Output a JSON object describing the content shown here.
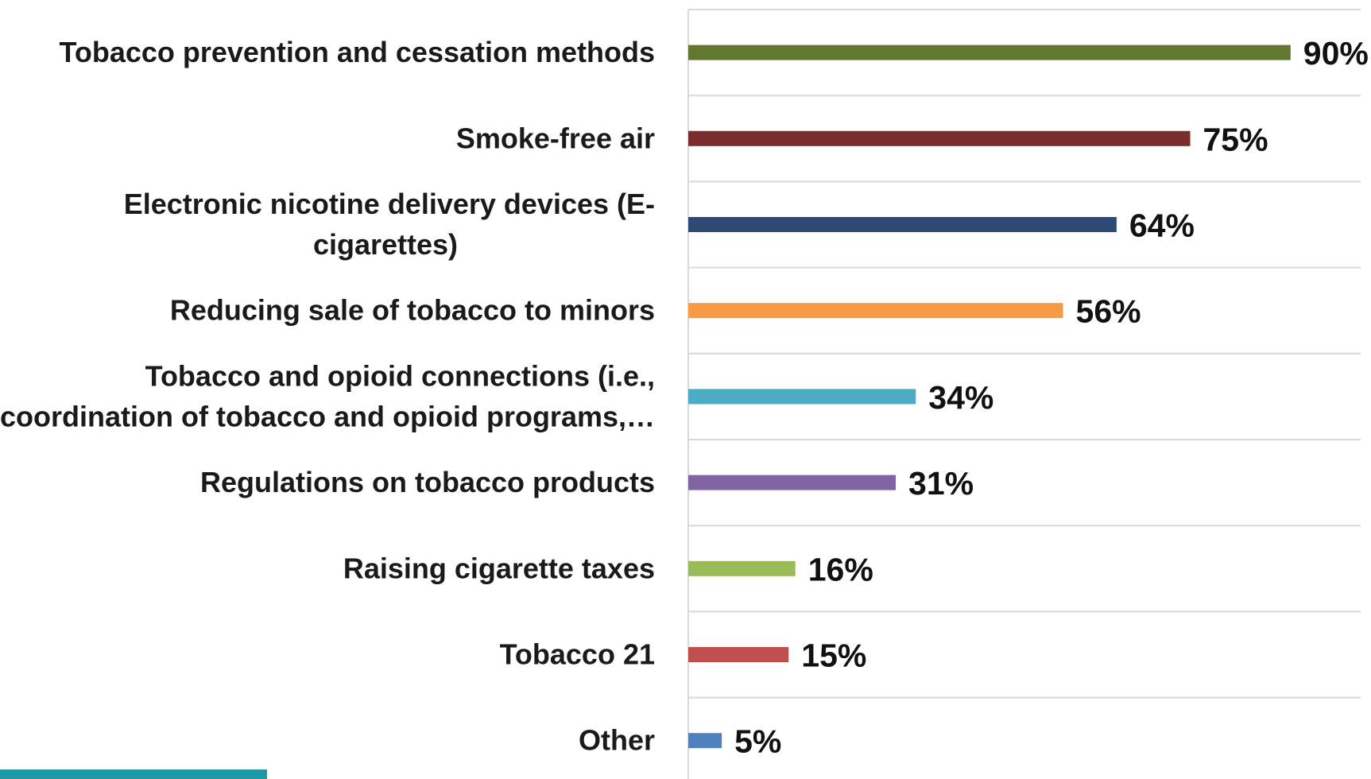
{
  "chart_data": {
    "type": "bar",
    "orientation": "horizontal",
    "categories": [
      [
        "Tobacco prevention and cessation methods"
      ],
      [
        "Smoke-free air"
      ],
      [
        "Electronic nicotine delivery devices (E-",
        "cigarettes)"
      ],
      [
        "Reducing sale of tobacco to minors"
      ],
      [
        "Tobacco and opioid connections (i.e.,",
        "coordination of tobacco and opioid programs,…"
      ],
      [
        "Regulations on tobacco products"
      ],
      [
        "Raising cigarette taxes"
      ],
      [
        "Tobacco 21"
      ],
      [
        "Other"
      ]
    ],
    "values": [
      90,
      75,
      64,
      56,
      34,
      31,
      16,
      15,
      5
    ],
    "value_labels": [
      "90%",
      "75%",
      "64%",
      "56%",
      "34%",
      "31%",
      "16%",
      "15%",
      "5%"
    ],
    "colors": [
      "#63782f",
      "#7b2c2c",
      "#2e4a74",
      "#f59a45",
      "#4bacc6",
      "#8064a2",
      "#9bbb59",
      "#c0504d",
      "#4f81bd"
    ],
    "xlim": [
      0,
      100
    ],
    "grid": true,
    "legend": "none",
    "title": "",
    "xlabel": "",
    "ylabel": ""
  },
  "logo": {
    "color": "#1b9aa6"
  }
}
